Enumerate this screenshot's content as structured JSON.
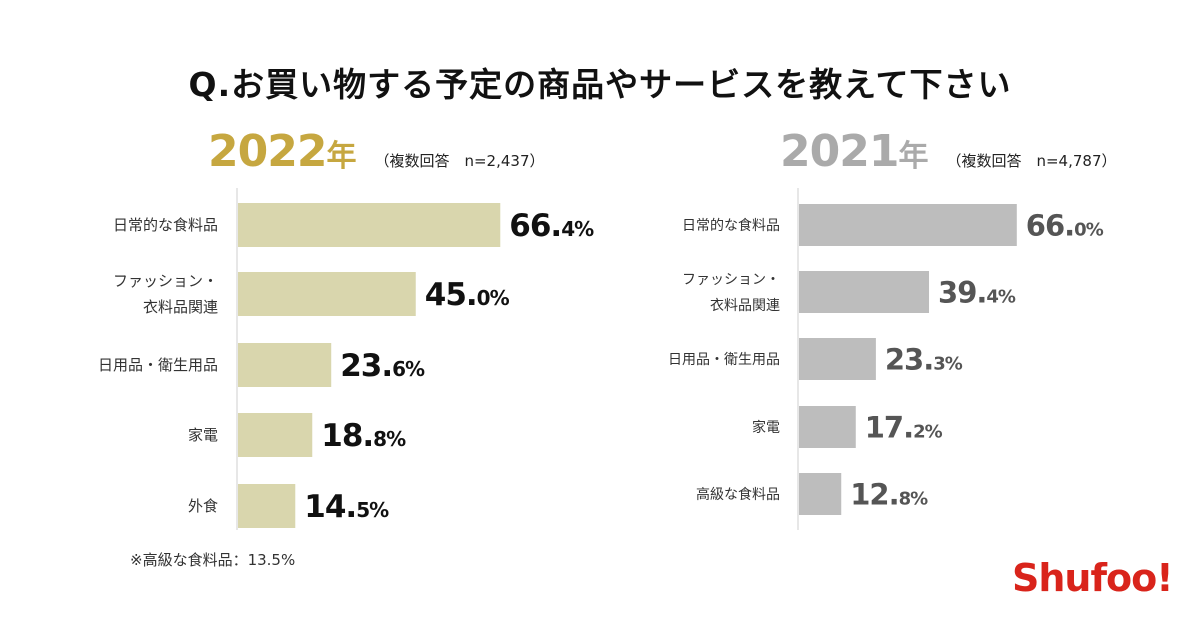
{
  "title": "Q.お買い物する予定の商品やサービスを教えて下さい",
  "colors": {
    "gold": "#c6a740",
    "gold_bar": "#d9d6ad",
    "gray_year": "#aaaaaa",
    "gray_bar": "#bdbdbd",
    "logo_red": "#d9241b"
  },
  "footnote": "※高級な食料品：13.5%",
  "logo": "Shufoo!",
  "chart_data": [
    {
      "type": "bar",
      "orientation": "horizontal",
      "year": "2022",
      "year_suffix": "年",
      "note": "（複数回答　n=2,437）",
      "categories": [
        [
          "日常的な食料品"
        ],
        [
          "ファッション・",
          "衣料品関連"
        ],
        [
          "日用品・衛生用品"
        ],
        [
          "家電"
        ],
        [
          "外食"
        ]
      ],
      "values": [
        66.4,
        45.0,
        23.6,
        18.8,
        14.5
      ],
      "labels": [
        [
          "66.",
          "4%"
        ],
        [
          "45.",
          "0%"
        ],
        [
          "23.",
          "6%"
        ],
        [
          "18.",
          "8%"
        ],
        [
          "14.",
          "5%"
        ]
      ],
      "xlim": [
        0,
        100
      ]
    },
    {
      "type": "bar",
      "orientation": "horizontal",
      "year": "2021",
      "year_suffix": "年",
      "note": "（複数回答　n=4,787）",
      "categories": [
        [
          "日常的な食料品"
        ],
        [
          "ファッション・",
          "衣料品関連"
        ],
        [
          "日用品・衛生用品"
        ],
        [
          "家電"
        ],
        [
          "高級な食料品"
        ]
      ],
      "values": [
        66.0,
        39.4,
        23.3,
        17.2,
        12.8
      ],
      "labels": [
        [
          "66.",
          "0%"
        ],
        [
          "39.",
          "4%"
        ],
        [
          "23.",
          "3%"
        ],
        [
          "17.",
          "2%"
        ],
        [
          "12.",
          "8%"
        ]
      ],
      "xlim": [
        0,
        100
      ]
    }
  ]
}
